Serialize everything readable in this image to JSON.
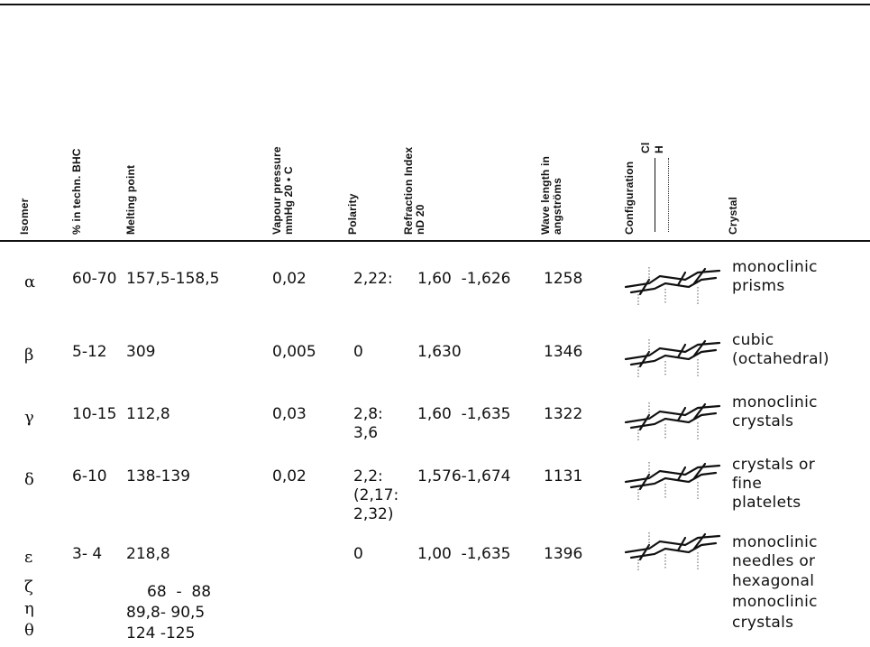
{
  "headers": {
    "isomer": "Isomer",
    "pct_techn_bhc": "% in techn. BHC",
    "melting_point": "Melting point",
    "vapour_pressure_1": "Vapour pressure",
    "vapour_pressure_2": "mmHg 20 • C",
    "polarity": "Polarity",
    "refraction_1": "Refraction Index",
    "refraction_2": "nD 20",
    "wavelength_1": "Wave length in",
    "wavelength_2": "angströms",
    "configuration": "Configuration",
    "config_cl": "Cl",
    "config_h": "H",
    "crystal": "Crystal"
  },
  "rows": [
    {
      "isomer": "α",
      "pct": "60-70",
      "melting": "157,5-158,5",
      "vapour": "0,02",
      "polarity": [
        "2,22:"
      ],
      "refraction": "1,60  -1,626",
      "wavelength": "1258",
      "crystal": [
        "monoclinic",
        "prisms"
      ]
    },
    {
      "isomer": "β",
      "pct": "5-12",
      "melting": "309",
      "vapour": "0,005",
      "polarity": [
        "0"
      ],
      "refraction": "1,630",
      "wavelength": "1346",
      "crystal": [
        "cubic",
        "(octahedral)"
      ]
    },
    {
      "isomer": "γ",
      "pct": "10-15",
      "melting": "112,8",
      "vapour": "0,03",
      "polarity": [
        "2,8:",
        "3,6"
      ],
      "refraction": "1,60  -1,635",
      "wavelength": "1322",
      "crystal": [
        "monoclinic",
        "crystals"
      ]
    },
    {
      "isomer": "δ",
      "pct": "6-10",
      "melting": "138-139",
      "vapour": "0,02",
      "polarity": [
        "2,2:",
        "(2,17:",
        "2,32)"
      ],
      "refraction": "1,576-1,674",
      "wavelength": "1131",
      "crystal": [
        "crystals or",
        "fine",
        "platelets"
      ]
    },
    {
      "isomer": "ε",
      "pct": "3- 4",
      "melting": "218,8",
      "vapour": "",
      "polarity": [
        "0"
      ],
      "refraction": "1,00  -1,635",
      "wavelength": "1396",
      "crystal": [
        "monoclinic",
        "needles or"
      ]
    }
  ],
  "extra_rows": [
    {
      "isomer": "ζ",
      "melting": "68  -  88",
      "crystal": "hexagonal"
    },
    {
      "isomer": "η",
      "melting": "89,8- 90,5",
      "crystal": "monoclinic"
    },
    {
      "isomer": "θ",
      "melting": "124 -125",
      "crystal": "crystals"
    }
  ],
  "icons": {
    "molecule": "cyclohexane-chair-conformation-icon"
  }
}
